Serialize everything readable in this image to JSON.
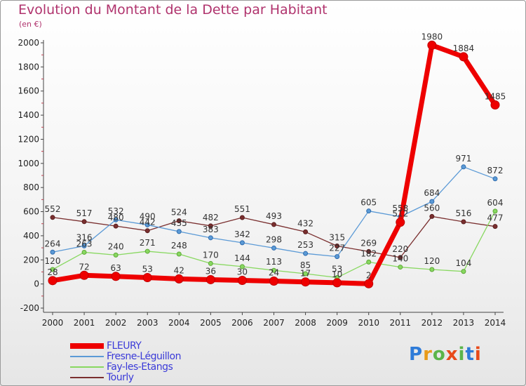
{
  "chart_data": {
    "type": "line",
    "title": "Evolution du Montant de la Dette par Habitant",
    "subtitle": "(en €)",
    "x": [
      "2000",
      "2001",
      "2002",
      "2003",
      "2004",
      "2005",
      "2006",
      "2007",
      "2008",
      "2009",
      "2010",
      "2011",
      "2012",
      "2013",
      "2014"
    ],
    "ylim": [
      -200,
      2000
    ],
    "yticks": [
      -200,
      0,
      200,
      400,
      600,
      800,
      1000,
      1200,
      1400,
      1600,
      1800,
      2000
    ],
    "ytick_labels": [
      "-200",
      "0",
      "200",
      "400",
      "600",
      "800",
      "1000",
      "1200",
      "1400",
      "1600",
      "1800",
      "2000"
    ],
    "grid": false,
    "legend_position": "bottom-left",
    "series": [
      {
        "name": "Tourly",
        "color": "#7a2f2f",
        "values": [
          552,
          517,
          480,
          442,
          524,
          482,
          551,
          493,
          432,
          315,
          269,
          220,
          560,
          516,
          477
        ]
      },
      {
        "name": "Fay-les-Etangs",
        "color": "#88d860",
        "values": [
          120,
          263,
          240,
          271,
          248,
          170,
          144,
          113,
          85,
          53,
          182,
          140,
          120,
          104,
          604
        ]
      },
      {
        "name": "Fresne-Léguillon",
        "color": "#5b9ad6",
        "values": [
          264,
          316,
          532,
          490,
          435,
          383,
          342,
          298,
          253,
          227,
          605,
          558,
          684,
          971,
          872
        ]
      },
      {
        "name": "FLEURY",
        "color": "#ee0000",
        "values": [
          28,
          72,
          63,
          53,
          42,
          36,
          30,
          24,
          17,
          10,
          2,
          512,
          1980,
          1884,
          1485
        ]
      }
    ],
    "value_labels": [
      {
        "series": "Tourly",
        "values": [
          "552",
          "517",
          "480",
          "442",
          "524",
          "482",
          "551",
          "493",
          "432",
          "315",
          "269",
          "220",
          "560",
          "516",
          "477"
        ]
      },
      {
        "series": "Fay-les-Etangs",
        "values": [
          "120",
          "263",
          "240",
          "271",
          "248",
          "170",
          "144",
          "113",
          "85",
          "53",
          "182",
          "140",
          "120",
          "104",
          "604"
        ]
      },
      {
        "series": "Fresne-Léguillon",
        "values": [
          "264",
          "316",
          "532",
          "490",
          "435",
          "383",
          "342",
          "298",
          "253",
          "227",
          "605",
          "558",
          "684",
          "971",
          "872"
        ]
      },
      {
        "series": "FLEURY",
        "values": [
          "28",
          "72",
          "63",
          "53",
          "42",
          "36",
          "30",
          "24",
          "17",
          "10",
          "2",
          "512",
          "1980",
          "1884",
          "1485"
        ]
      }
    ]
  },
  "legend": [
    {
      "label": "FLEURY",
      "color": "#ee0000"
    },
    {
      "label": "Fresne-Léguillon",
      "color": "#5b9ad6"
    },
    {
      "label": "Fay-les-Etangs",
      "color": "#88d860"
    },
    {
      "label": "Tourly",
      "color": "#7a2f2f"
    }
  ],
  "logo": {
    "text": "Proxiti",
    "letter_colors": [
      "#2e7bd8",
      "#e89a1a",
      "#5bb54a",
      "#e84a1a",
      "#5bb54a",
      "#2e7bd8",
      "#e84a1a"
    ]
  }
}
